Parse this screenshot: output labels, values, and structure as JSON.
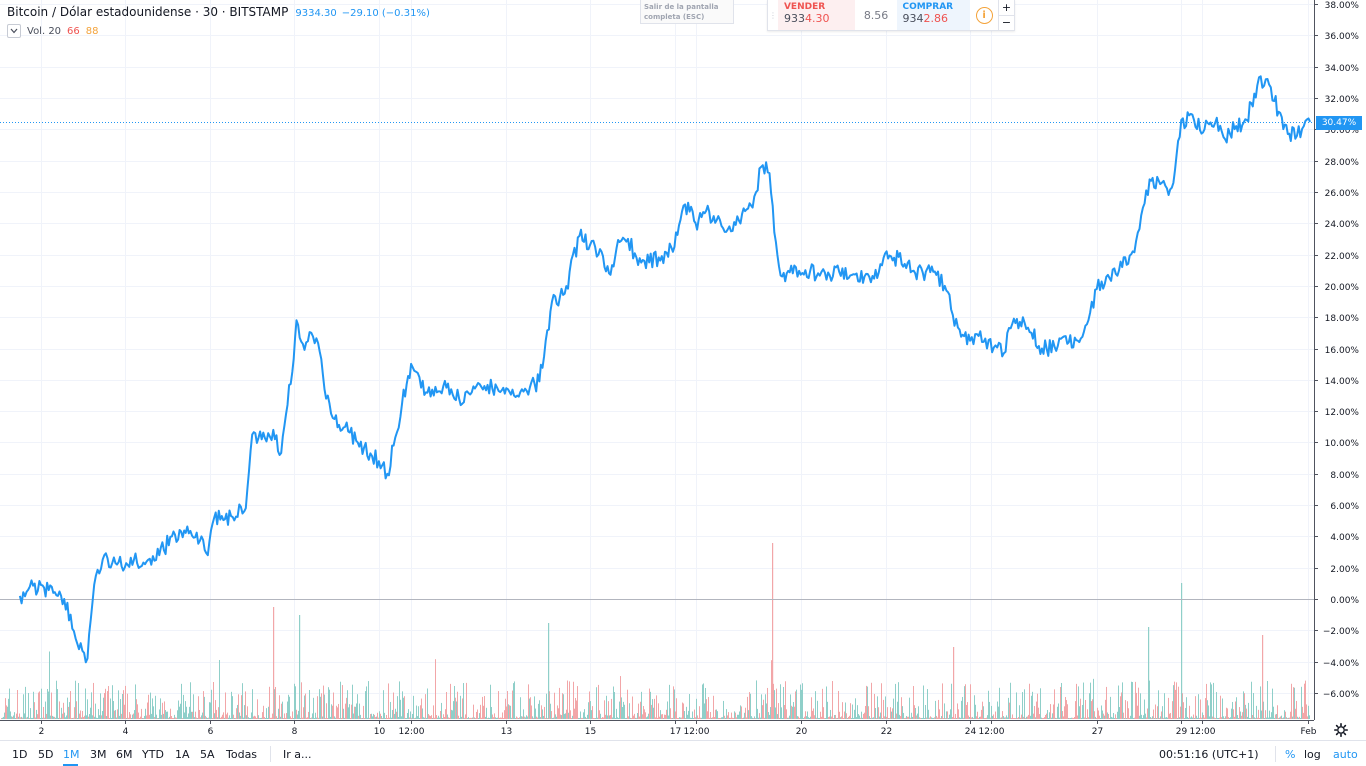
{
  "header": {
    "title": "Bitcoin / Dólar estadounidense · 30 · BITSTAMP",
    "price": "9334.30",
    "change": "−29.10 (−0.31%)"
  },
  "volume_legend": {
    "label": "Vol. 20",
    "values": [
      "66",
      "88"
    ]
  },
  "exit_fullscreen": {
    "line1": "Salir de la pantalla",
    "line2": "completa (ESC)"
  },
  "trade_panel": {
    "sell_label": "VENDER",
    "sell_price_lo": "933",
    "sell_price_hi": "4.30",
    "spread": "8.56",
    "buy_label": "COMPRAR",
    "buy_price_lo": "934",
    "buy_price_hi": "2.86",
    "info_icon": "i",
    "plus": "+",
    "minus": "−"
  },
  "current_value_tag": "30.47%",
  "bottom_bar": {
    "ranges": [
      "1D",
      "5D",
      "1M",
      "3M",
      "6M",
      "YTD",
      "1A",
      "5A",
      "Todas"
    ],
    "active_range": "1M",
    "goto": "Ir a...",
    "time": "00:51:16 (UTC+1)",
    "modes": [
      "%",
      "log",
      "auto"
    ]
  },
  "colors": {
    "line": "#2196f3",
    "volume_up": "#8fcfc9",
    "volume_down": "#f2a6a8",
    "grid": "#f0f3fa",
    "axis_text": "#131722"
  },
  "icons": {
    "collapse": "chevron-down-icon",
    "settings": "gear-icon",
    "info": "info-icon",
    "grip": "drag-handle-icon"
  },
  "chart_data": {
    "type": "line",
    "scale": "percent",
    "ylim": [
      -7.5,
      38.5
    ],
    "y_ticks": [
      38,
      36,
      34,
      32,
      30,
      28,
      26,
      24,
      22,
      20,
      18,
      16,
      14,
      12,
      10,
      8,
      6,
      4,
      2,
      0,
      -2,
      -4,
      -6
    ],
    "y_tick_labels": [
      "38.00%",
      "36.00%",
      "34.00%",
      "32.00%",
      "30.00%",
      "28.00%",
      "26.00%",
      "24.00%",
      "22.00%",
      "20.00%",
      "18.00%",
      "16.00%",
      "14.00%",
      "12.00%",
      "10.00%",
      "8.00%",
      "6.00%",
      "4.00%",
      "2.00%",
      "0.00%",
      "−2.00%",
      "−4.00%",
      "−6.00%"
    ],
    "xlim": [
      1.5,
      32.1
    ],
    "x_ticks": [
      {
        "label": "2",
        "x": 2
      },
      {
        "label": "4",
        "x": 4
      },
      {
        "label": "6",
        "x": 6
      },
      {
        "label": "8",
        "x": 8
      },
      {
        "label": "10",
        "x": 10
      },
      {
        "label": "12:00",
        "x": 10.75
      },
      {
        "label": "13",
        "x": 13
      },
      {
        "label": "15",
        "x": 15
      },
      {
        "label": "17",
        "x": 17
      },
      {
        "label": "12:00",
        "x": 17.5
      },
      {
        "label": "20",
        "x": 20
      },
      {
        "label": "22",
        "x": 22
      },
      {
        "label": "24",
        "x": 24
      },
      {
        "label": "12:00",
        "x": 24.5
      },
      {
        "label": "27",
        "x": 27
      },
      {
        "label": "29",
        "x": 29
      },
      {
        "label": "12:00",
        "x": 29.5
      },
      {
        "label": "Feb",
        "x": 32
      }
    ],
    "baseline": 0,
    "last_value": 30.47,
    "series": [
      {
        "points": [
          [
            1.5,
            0.2
          ],
          [
            1.7,
            0.6
          ],
          [
            2.0,
            0.9
          ],
          [
            2.4,
            0.2
          ],
          [
            2.7,
            -1.0
          ],
          [
            2.9,
            -3.2
          ],
          [
            3.1,
            -3.8
          ],
          [
            3.3,
            1.5
          ],
          [
            3.5,
            2.8
          ],
          [
            3.8,
            2.2
          ],
          [
            4.2,
            2.5
          ],
          [
            4.5,
            2.4
          ],
          [
            4.8,
            2.8
          ],
          [
            5.1,
            4.0
          ],
          [
            5.5,
            4.2
          ],
          [
            5.8,
            4.0
          ],
          [
            5.95,
            2.8
          ],
          [
            6.1,
            5.2
          ],
          [
            6.5,
            5.3
          ],
          [
            6.85,
            5.8
          ],
          [
            7.0,
            10.5
          ],
          [
            7.3,
            10.3
          ],
          [
            7.5,
            10.8
          ],
          [
            7.65,
            9.2
          ],
          [
            7.8,
            11.8
          ],
          [
            7.95,
            14.5
          ],
          [
            8.05,
            17.8
          ],
          [
            8.2,
            16.3
          ],
          [
            8.4,
            17.0
          ],
          [
            8.6,
            15.8
          ],
          [
            8.75,
            12.8
          ],
          [
            8.95,
            11.5
          ],
          [
            9.2,
            11.0
          ],
          [
            9.5,
            10.0
          ],
          [
            9.8,
            9.3
          ],
          [
            10.0,
            8.8
          ],
          [
            10.2,
            8.0
          ],
          [
            10.35,
            9.8
          ],
          [
            10.55,
            12.5
          ],
          [
            10.8,
            14.8
          ],
          [
            11.0,
            13.5
          ],
          [
            11.3,
            13.0
          ],
          [
            11.6,
            13.5
          ],
          [
            11.9,
            12.8
          ],
          [
            12.2,
            13.2
          ],
          [
            12.5,
            13.6
          ],
          [
            12.8,
            13.5
          ],
          [
            13.2,
            13.0
          ],
          [
            13.5,
            13.3
          ],
          [
            13.8,
            13.9
          ],
          [
            13.95,
            16.5
          ],
          [
            14.1,
            19.0
          ],
          [
            14.4,
            19.5
          ],
          [
            14.75,
            23.2
          ],
          [
            15.0,
            22.6
          ],
          [
            15.2,
            22.0
          ],
          [
            15.45,
            20.8
          ],
          [
            15.7,
            22.8
          ],
          [
            15.9,
            23.0
          ],
          [
            16.1,
            21.8
          ],
          [
            16.4,
            21.5
          ],
          [
            16.7,
            21.9
          ],
          [
            17.0,
            22.5
          ],
          [
            17.25,
            25.2
          ],
          [
            17.5,
            24.0
          ],
          [
            17.75,
            24.8
          ],
          [
            18.0,
            24.2
          ],
          [
            18.3,
            23.8
          ],
          [
            18.6,
            24.6
          ],
          [
            18.85,
            25.0
          ],
          [
            19.05,
            27.6
          ],
          [
            19.25,
            27.2
          ],
          [
            19.4,
            22.8
          ],
          [
            19.55,
            20.6
          ],
          [
            19.8,
            20.8
          ],
          [
            20.1,
            21.0
          ],
          [
            20.4,
            20.8
          ],
          [
            20.6,
            20.4
          ],
          [
            20.9,
            20.9
          ],
          [
            21.2,
            20.7
          ],
          [
            21.5,
            20.6
          ],
          [
            21.8,
            20.5
          ],
          [
            21.95,
            21.8
          ],
          [
            22.2,
            21.8
          ],
          [
            22.45,
            21.4
          ],
          [
            22.7,
            20.8
          ],
          [
            22.95,
            20.9
          ],
          [
            23.2,
            20.7
          ],
          [
            23.4,
            20.0
          ],
          [
            23.55,
            18.5
          ],
          [
            23.75,
            17.2
          ],
          [
            24.0,
            16.5
          ],
          [
            24.2,
            16.8
          ],
          [
            24.4,
            16.0
          ],
          [
            24.6,
            16.2
          ],
          [
            24.8,
            15.7
          ],
          [
            25.0,
            17.6
          ],
          [
            25.25,
            18.0
          ],
          [
            25.45,
            17.0
          ],
          [
            25.7,
            16.0
          ],
          [
            26.0,
            16.1
          ],
          [
            26.3,
            16.3
          ],
          [
            26.55,
            16.5
          ],
          [
            26.8,
            17.8
          ],
          [
            27.0,
            19.8
          ],
          [
            27.3,
            20.5
          ],
          [
            27.6,
            21.2
          ],
          [
            27.85,
            22.2
          ],
          [
            28.05,
            24.5
          ],
          [
            28.25,
            26.8
          ],
          [
            28.5,
            26.5
          ],
          [
            28.7,
            25.8
          ],
          [
            28.85,
            27.4
          ],
          [
            29.0,
            30.6
          ],
          [
            29.3,
            30.6
          ],
          [
            29.55,
            30.0
          ],
          [
            29.8,
            30.4
          ],
          [
            30.0,
            29.5
          ],
          [
            30.3,
            30.2
          ],
          [
            30.55,
            30.6
          ],
          [
            30.8,
            32.8
          ],
          [
            31.0,
            33.2
          ],
          [
            31.2,
            31.8
          ],
          [
            31.45,
            30.3
          ],
          [
            31.7,
            29.4
          ],
          [
            31.9,
            30.2
          ],
          [
            32.05,
            30.47
          ]
        ]
      }
    ],
    "volume": {
      "max": 100,
      "spikes": [
        {
          "x": 7.5,
          "value": 28,
          "dir": "down"
        },
        {
          "x": 8.1,
          "value": 26,
          "dir": "up"
        },
        {
          "x": 14.0,
          "value": 24,
          "dir": "up"
        },
        {
          "x": 19.3,
          "value": 44,
          "dir": "down"
        },
        {
          "x": 23.6,
          "value": 18,
          "dir": "down"
        },
        {
          "x": 29.0,
          "value": 34,
          "dir": "up"
        },
        {
          "x": 28.2,
          "value": 23,
          "dir": "up"
        },
        {
          "x": 30.9,
          "value": 21,
          "dir": "down"
        }
      ]
    }
  }
}
